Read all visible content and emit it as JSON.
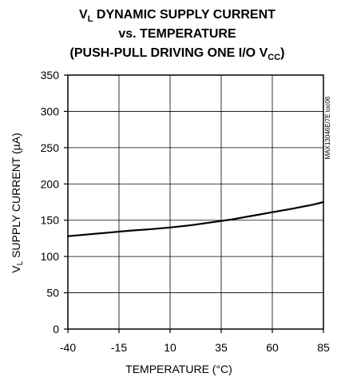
{
  "chart_data": {
    "type": "line",
    "title": {
      "line1": {
        "prefix": "V",
        "subscript": "L",
        "suffix": " DYNAMIC SUPPLY CURRENT"
      },
      "line2": "vs. TEMPERATURE",
      "line3": {
        "prefix": "(PUSH-PULL DRIVING ONE I/O V",
        "subscript": "CC",
        "suffix": ")"
      }
    },
    "xlabel": "TEMPERATURE (°C)",
    "ylabel": {
      "prefix": "V",
      "subscript": "L",
      "suffix": " SUPPLY CURRENT (µA)"
    },
    "annotation": "MAX13046E/7E toc06",
    "xlim": [
      -40,
      85
    ],
    "ylim": [
      0,
      350
    ],
    "xticks": [
      -40,
      -15,
      10,
      35,
      60,
      85
    ],
    "yticks": [
      0,
      50,
      100,
      150,
      200,
      250,
      300,
      350
    ],
    "grid": true,
    "series": [
      {
        "color": "#000000",
        "x": [
          -40,
          -30,
          -20,
          -10,
          0,
          10,
          20,
          30,
          35,
          40,
          50,
          60,
          70,
          80,
          85
        ],
        "y": [
          128,
          130.5,
          133,
          135.5,
          137.5,
          140,
          143,
          147,
          149,
          151,
          156,
          161,
          166,
          171.5,
          175
        ]
      }
    ]
  }
}
